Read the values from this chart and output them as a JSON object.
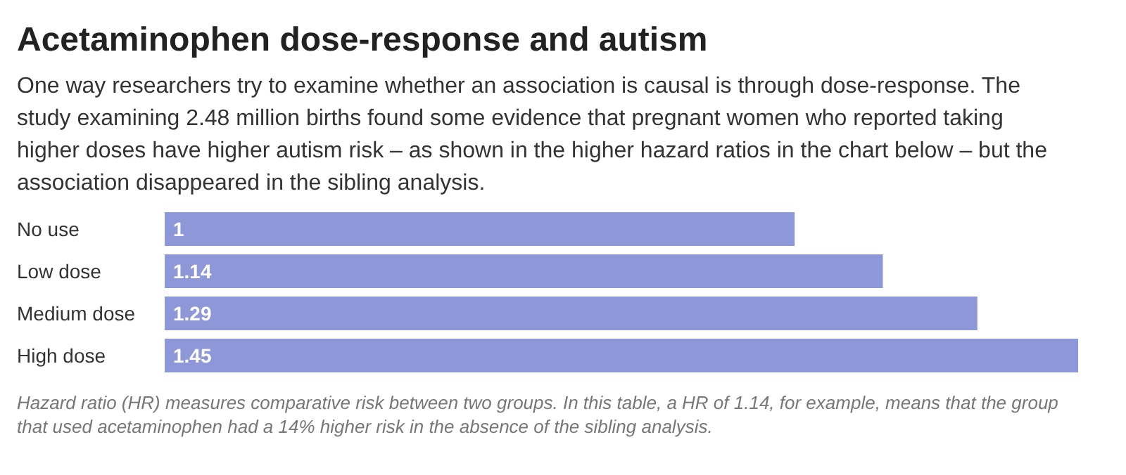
{
  "chart_data": {
    "type": "bar",
    "orientation": "horizontal",
    "title": "Acetaminophen dose-response and autism",
    "subtitle": "One way researchers try to examine whether an association is causal is through dose-response. The study examining 2.48 million births found some evidence that pregnant women who reported taking higher doses have higher autism risk – as shown in the higher hazard ratios in the chart below – but the association disappeared in the sibling analysis.",
    "categories": [
      "No use",
      "Low dose",
      "Medium dose",
      "High dose"
    ],
    "values": [
      1,
      1.14,
      1.29,
      1.45
    ],
    "color": "#8e98d8",
    "data_labels": true,
    "annotations": [
      "Hazard ratio (HR) measures comparative risk between two groups. In this table, a HR of 1.14, for example, means that the group that used acetaminophen had a 14% higher risk in the absence of the sibling analysis."
    ]
  }
}
